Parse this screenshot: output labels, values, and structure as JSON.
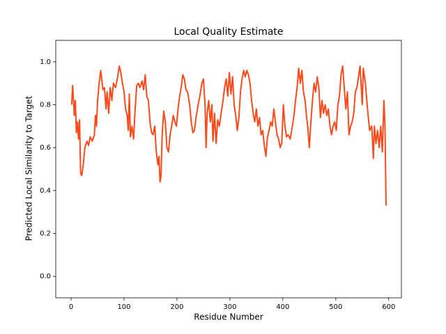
{
  "chart_data": {
    "type": "line",
    "title": "Local Quality Estimate",
    "xlabel": "Residue Number",
    "ylabel": "Predicted Local Similarity to Target",
    "xlim": [
      -29,
      624
    ],
    "ylim": [
      -0.1,
      1.1
    ],
    "xticks": [
      0,
      100,
      200,
      300,
      400,
      500,
      600
    ],
    "yticks": [
      {
        "value": 0,
        "label": "0.0"
      },
      0.2,
      0.4,
      0.6,
      0.8,
      {
        "value": 1,
        "label": "1.0"
      }
    ],
    "series": [
      {
        "color": "#fc4a1a",
        "x": [
          1,
          3,
          6,
          8,
          10,
          12,
          14,
          16,
          18,
          20,
          23,
          26,
          30,
          33,
          36,
          40,
          44,
          46,
          48,
          50,
          53,
          56,
          60,
          63,
          66,
          68,
          71,
          74,
          77,
          80,
          84,
          88,
          91,
          94,
          97,
          100,
          103,
          106,
          108,
          110,
          112,
          115,
          118,
          121,
          124,
          127,
          130,
          134,
          137,
          140,
          143,
          146,
          149,
          152,
          155,
          158,
          161,
          164,
          166,
          168,
          170,
          172,
          175,
          178,
          181,
          184,
          187,
          190,
          193,
          196,
          199,
          202,
          205,
          208,
          211,
          214,
          217,
          220,
          224,
          227,
          230,
          233,
          236,
          240,
          244,
          247,
          250,
          253,
          255,
          257,
          260,
          263,
          266,
          268,
          271,
          274,
          277,
          280,
          284,
          287,
          290,
          293,
          296,
          299,
          302,
          305,
          308,
          311,
          314,
          317,
          320,
          323,
          326,
          329,
          332,
          335,
          338,
          341,
          344,
          347,
          350,
          353,
          356,
          359,
          362,
          365,
          368,
          371,
          374,
          377,
          380,
          383,
          386,
          389,
          392,
          395,
          398,
          401,
          404,
          407,
          410,
          414,
          418,
          421,
          424,
          427,
          430,
          433,
          436,
          439,
          442,
          445,
          447,
          450,
          453,
          456,
          459,
          462,
          465,
          468,
          471,
          474,
          477,
          480,
          483,
          486,
          489,
          492,
          495,
          498,
          501,
          504,
          507,
          510,
          513,
          516,
          519,
          522,
          525,
          528,
          531,
          534,
          537,
          540,
          546,
          550,
          552,
          556,
          560,
          564,
          568,
          571,
          573,
          576,
          579,
          582,
          585,
          588,
          591,
          593,
          595
        ],
        "values": [
          0.8,
          0.89,
          0.75,
          0.82,
          0.67,
          0.72,
          0.64,
          0.73,
          0.48,
          0.47,
          0.52,
          0.6,
          0.63,
          0.61,
          0.65,
          0.63,
          0.66,
          0.75,
          0.7,
          0.82,
          0.9,
          0.96,
          0.87,
          0.88,
          0.78,
          0.86,
          0.76,
          0.88,
          0.82,
          0.9,
          0.88,
          0.93,
          0.98,
          0.95,
          0.9,
          0.86,
          0.78,
          0.75,
          0.68,
          0.85,
          0.65,
          0.7,
          0.64,
          0.78,
          0.89,
          0.9,
          0.88,
          0.91,
          0.87,
          0.94,
          0.84,
          0.82,
          0.72,
          0.67,
          0.66,
          0.7,
          0.58,
          0.52,
          0.56,
          0.44,
          0.47,
          0.66,
          0.77,
          0.72,
          0.6,
          0.58,
          0.66,
          0.7,
          0.75,
          0.72,
          0.7,
          0.78,
          0.84,
          0.88,
          0.94,
          0.92,
          0.87,
          0.86,
          0.8,
          0.72,
          0.67,
          0.68,
          0.74,
          0.8,
          0.85,
          0.9,
          0.92,
          0.8,
          0.6,
          0.76,
          0.82,
          0.72,
          0.8,
          0.63,
          0.76,
          0.62,
          0.73,
          0.7,
          0.77,
          0.82,
          0.88,
          0.92,
          0.84,
          0.95,
          0.85,
          0.93,
          0.8,
          0.75,
          0.68,
          0.74,
          0.86,
          0.92,
          0.96,
          0.93,
          0.96,
          0.94,
          0.9,
          0.82,
          0.76,
          0.72,
          0.78,
          0.7,
          0.74,
          0.66,
          0.68,
          0.61,
          0.56,
          0.65,
          0.68,
          0.72,
          0.7,
          0.78,
          0.72,
          0.66,
          0.64,
          0.6,
          0.62,
          0.8,
          0.7,
          0.65,
          0.66,
          0.64,
          0.7,
          0.75,
          0.82,
          0.88,
          0.97,
          0.9,
          0.96,
          0.86,
          0.82,
          0.74,
          0.7,
          0.6,
          0.72,
          0.82,
          0.9,
          0.86,
          0.93,
          0.88,
          0.74,
          0.82,
          0.76,
          0.8,
          0.75,
          0.78,
          0.7,
          0.66,
          0.7,
          0.72,
          0.68,
          0.8,
          0.84,
          0.94,
          0.98,
          0.88,
          0.78,
          0.86,
          0.66,
          0.7,
          0.72,
          0.76,
          0.86,
          0.88,
          0.98,
          0.8,
          0.97,
          0.9,
          0.78,
          0.68,
          0.7,
          0.55,
          0.7,
          0.62,
          0.68,
          0.6,
          0.7,
          0.58,
          0.82,
          0.7,
          0.33
        ]
      }
    ]
  }
}
